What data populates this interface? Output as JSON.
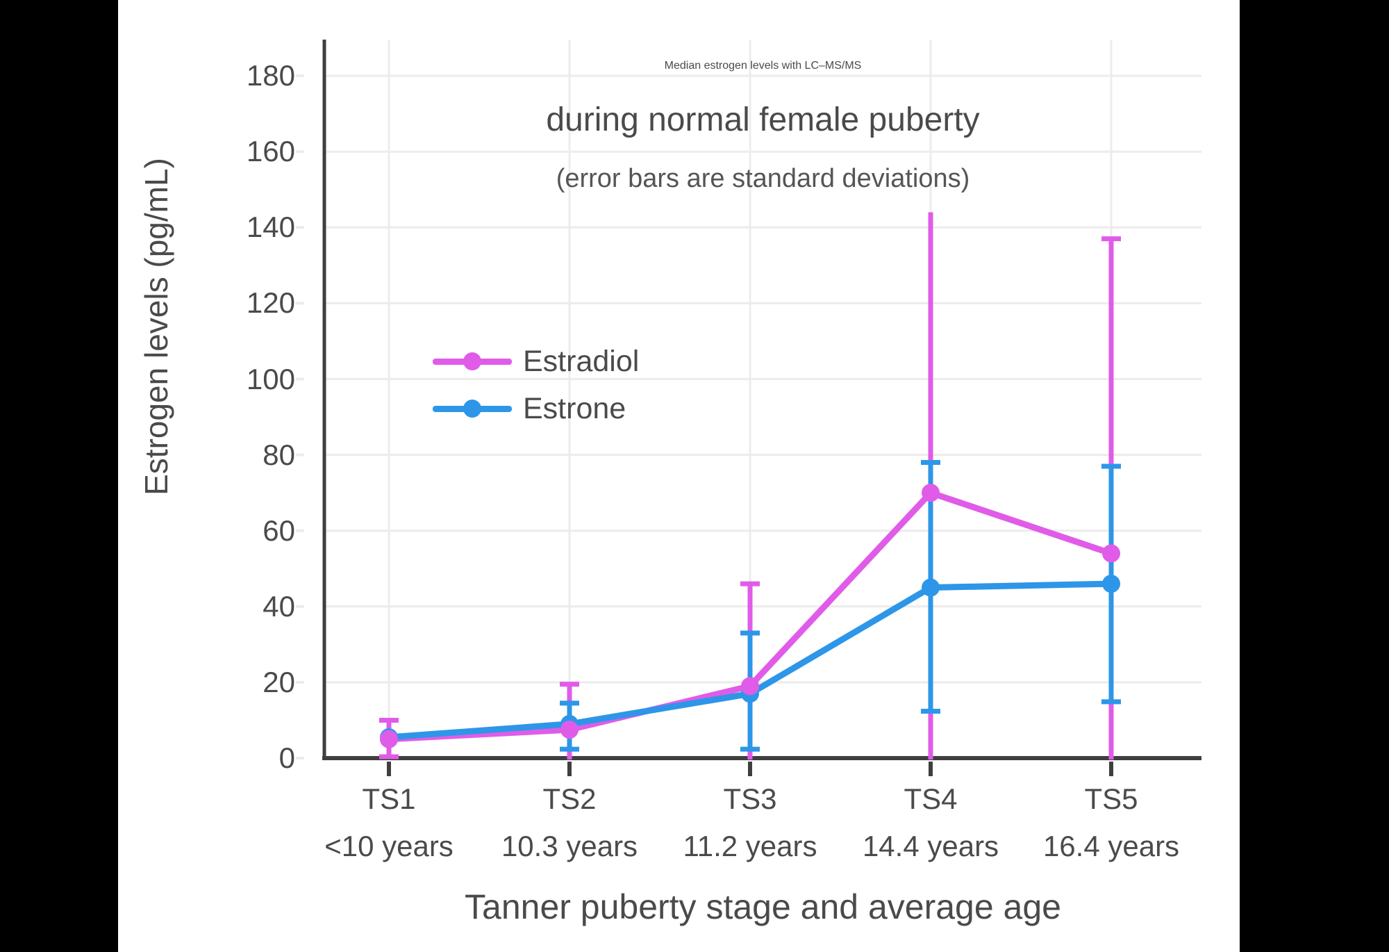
{
  "page": {
    "background": "#000000",
    "canvas_background": "#ffffff"
  },
  "chart_data": {
    "type": "line",
    "title": "Median estrogen levels with LC–MS/MS",
    "title_line2": "during normal female puberty",
    "subtitle": "(error bars are standard deviations)",
    "xlabel": "Tanner puberty stage and average age",
    "ylabel": "Estrogen levels (pg/mL)",
    "ylim": [
      0,
      190
    ],
    "yticks": [
      0,
      20,
      40,
      60,
      80,
      100,
      120,
      140,
      160,
      180
    ],
    "grid": true,
    "legend_position": "inside-upper-left",
    "categories": [
      {
        "stage": "TS1",
        "age": "<10 years"
      },
      {
        "stage": "TS2",
        "age": "10.3 years"
      },
      {
        "stage": "TS3",
        "age": "11.2 years"
      },
      {
        "stage": "TS4",
        "age": "14.4 years"
      },
      {
        "stage": "TS5",
        "age": "16.4 years"
      }
    ],
    "series": [
      {
        "name": "Estradiol",
        "color": "#E05CE8",
        "values": [
          5,
          7.5,
          19,
          70,
          54
        ],
        "error_upper": [
          10,
          19.5,
          46,
          144,
          137
        ],
        "error_upper_cap": [
          true,
          true,
          true,
          false,
          true
        ],
        "error_lower": [
          0,
          0,
          0,
          0,
          0
        ],
        "error_lower_cap": [
          true,
          false,
          false,
          false,
          false
        ],
        "note": "lower error bars for TS2–TS5 extend to the x-axis (clipped at 0)"
      },
      {
        "name": "Estrone",
        "color": "#2D96E8",
        "values": [
          5.5,
          9,
          17,
          45,
          46
        ],
        "error_upper": [
          null,
          14.5,
          33,
          78,
          77
        ],
        "error_upper_cap": [
          false,
          true,
          true,
          true,
          true
        ],
        "error_lower": [
          null,
          2,
          2,
          12,
          14.5
        ],
        "error_lower_cap": [
          false,
          true,
          true,
          true,
          true
        ],
        "note": "TS1 marker and error bar hidden behind Estradiol point"
      }
    ],
    "colors": {
      "gridline": "#ECECEC",
      "axis": "#3F3F3F",
      "tick_text": "#4A4A4A"
    }
  }
}
